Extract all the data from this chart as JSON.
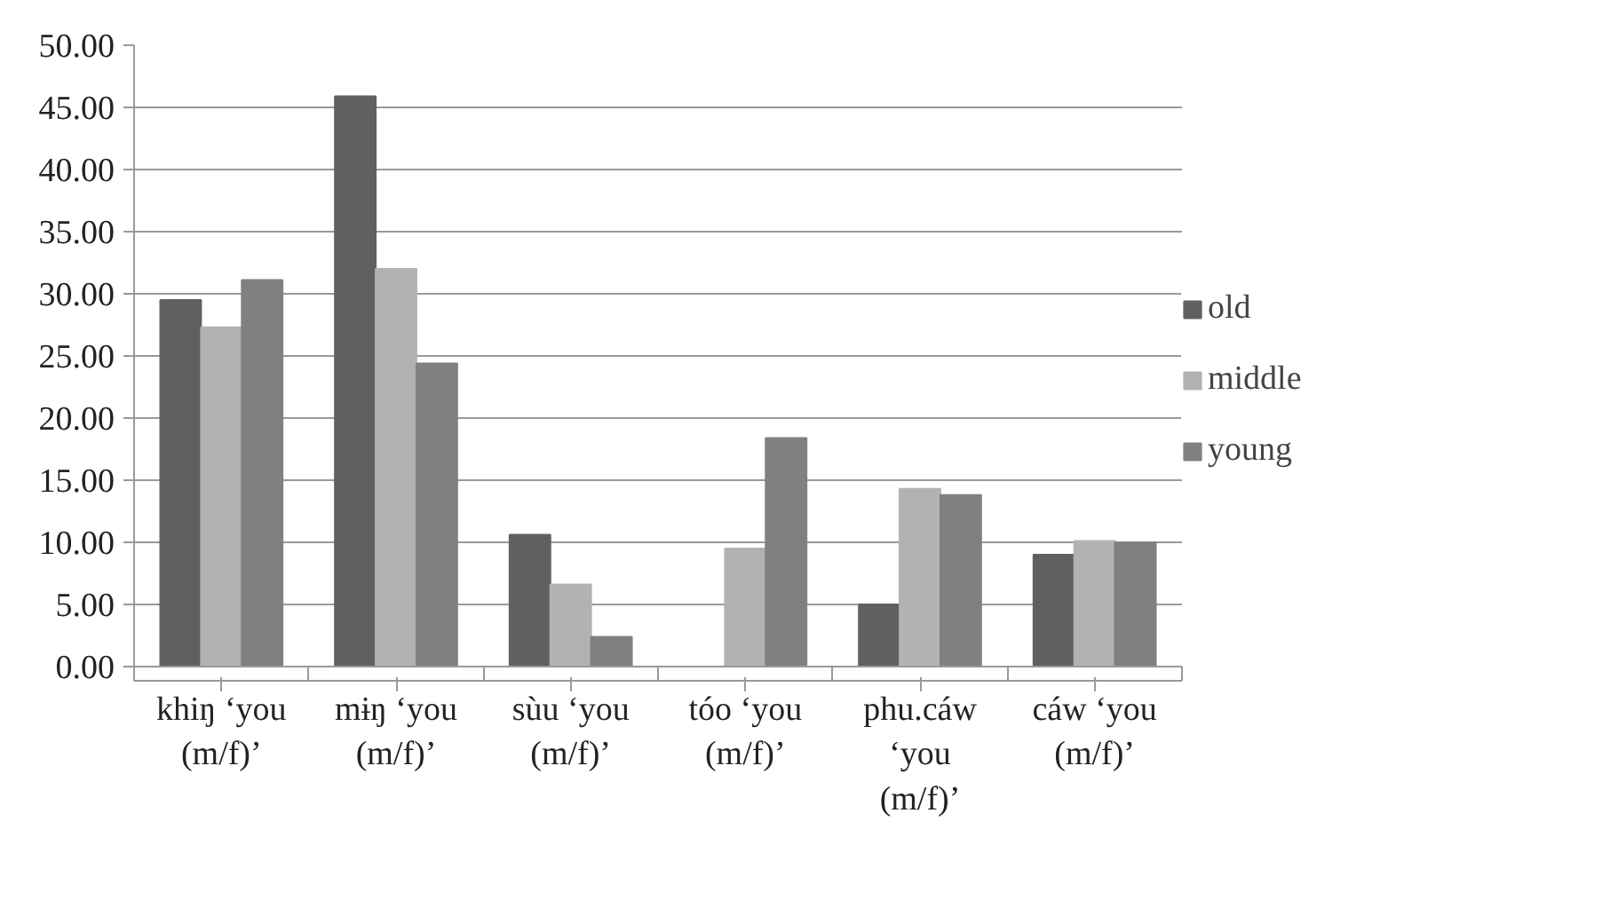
{
  "chart_data": {
    "type": "bar",
    "categories": [
      "khiŋ ‘you (m/f)’",
      "mɨŋ ‘you (m/f)’",
      "sùu ‘you (m/f)’",
      "tóo ‘you (m/f)’",
      "phu.cáw ‘you (m/f)’",
      "cáw ‘you (m/f)’"
    ],
    "series": [
      {
        "name": "old",
        "color": "#606060",
        "values": [
          29.5,
          45.9,
          10.6,
          0,
          5.0,
          9.0
        ]
      },
      {
        "name": "middle",
        "color": "#b2b2b2",
        "values": [
          27.3,
          32.0,
          6.6,
          9.5,
          14.3,
          10.1
        ]
      },
      {
        "name": "young",
        "color": "#808080",
        "values": [
          31.1,
          24.4,
          2.4,
          18.4,
          13.8,
          10.0
        ]
      }
    ],
    "ylim": [
      0,
      50
    ],
    "yticks": [
      {
        "value": 0,
        "label": "0.00"
      },
      {
        "value": 5,
        "label": "5.00"
      },
      {
        "value": 10,
        "label": "10.00"
      },
      {
        "value": 15,
        "label": "15.00"
      },
      {
        "value": 20,
        "label": "20.00"
      },
      {
        "value": 25,
        "label": "25.00"
      },
      {
        "value": 30,
        "label": "30.00"
      },
      {
        "value": 35,
        "label": "35.00"
      },
      {
        "value": 40,
        "label": "40.00"
      },
      {
        "value": 45,
        "label": "45.00"
      },
      {
        "value": 50,
        "label": "50.00"
      }
    ],
    "grid": "y",
    "legend": "right"
  }
}
